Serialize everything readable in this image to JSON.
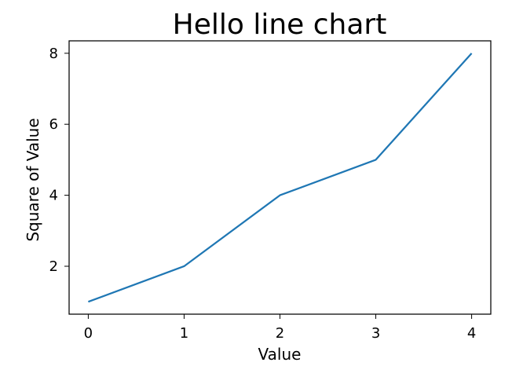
{
  "chart_data": {
    "type": "line",
    "title": "Hello line chart",
    "xlabel": "Value",
    "ylabel": "Square of Value",
    "x": [
      0,
      1,
      2,
      3,
      4
    ],
    "series": [
      {
        "values": [
          1,
          2,
          4,
          5,
          8
        ],
        "color": "#1f77b4"
      }
    ],
    "xlim": [
      -0.2,
      4.2
    ],
    "ylim": [
      0.65,
      8.35
    ],
    "xticks": [
      0,
      1,
      2,
      3,
      4
    ],
    "yticks": [
      2,
      4,
      6,
      8
    ],
    "grid": false,
    "legend": false
  }
}
